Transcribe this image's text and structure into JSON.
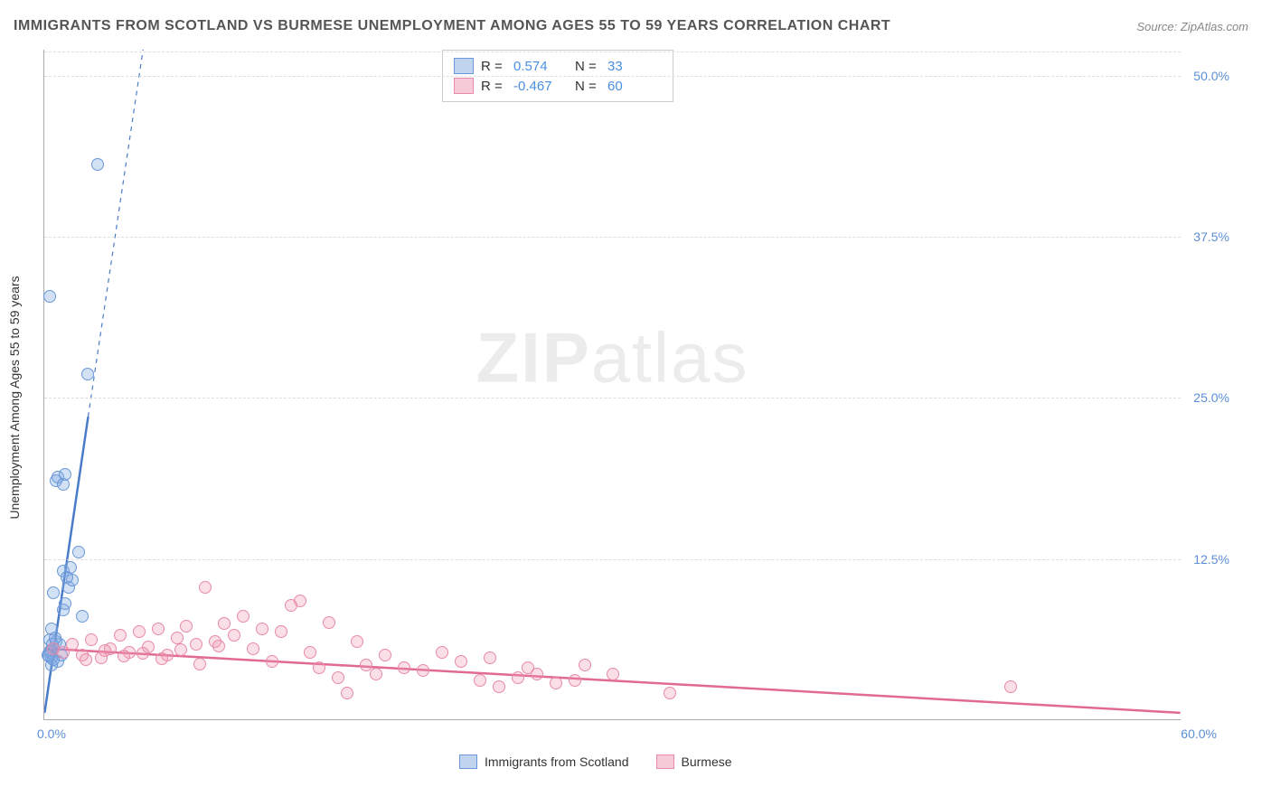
{
  "title": "IMMIGRANTS FROM SCOTLAND VS BURMESE UNEMPLOYMENT AMONG AGES 55 TO 59 YEARS CORRELATION CHART",
  "source": "Source: ZipAtlas.com",
  "ylabel": "Unemployment Among Ages 55 to 59 years",
  "watermark_a": "ZIP",
  "watermark_b": "atlas",
  "chart": {
    "type": "scatter",
    "xlim": [
      0,
      60
    ],
    "ylim": [
      0,
      52
    ],
    "yticks": [
      12.5,
      25.0,
      37.5,
      50.0
    ],
    "ytick_labels": [
      "12.5%",
      "25.0%",
      "37.5%",
      "50.0%"
    ],
    "x_zero_label": "0.0%",
    "x_max_label": "60.0%",
    "background_color": "#ffffff",
    "grid_color": "#dddddd",
    "marker_radius": 7,
    "marker_opacity": 0.35,
    "series": [
      {
        "name": "Immigrants from Scotland",
        "color_fill": "#a4c2e8",
        "color_stroke": "#6a98d8",
        "R": "0.574",
        "N": "33",
        "regression": {
          "x1": 0,
          "y1": 0.5,
          "x2": 2.3,
          "y2": 23.5,
          "x2_dash": 5.2,
          "y2_dash": 52,
          "stroke_width": 2.5
        },
        "points": [
          [
            0.2,
            5.0
          ],
          [
            0.3,
            5.2
          ],
          [
            0.4,
            4.8
          ],
          [
            0.5,
            5.5
          ],
          [
            0.6,
            6.0
          ],
          [
            0.3,
            6.2
          ],
          [
            0.7,
            4.5
          ],
          [
            0.8,
            5.8
          ],
          [
            0.4,
            7.0
          ],
          [
            0.9,
            5.0
          ],
          [
            1.0,
            8.5
          ],
          [
            1.1,
            9.0
          ],
          [
            0.5,
            9.8
          ],
          [
            1.3,
            10.2
          ],
          [
            1.5,
            10.8
          ],
          [
            1.0,
            11.5
          ],
          [
            1.2,
            11.0
          ],
          [
            1.4,
            11.8
          ],
          [
            1.8,
            13.0
          ],
          [
            2.0,
            8.0
          ],
          [
            0.6,
            18.5
          ],
          [
            0.7,
            18.8
          ],
          [
            1.0,
            18.2
          ],
          [
            1.1,
            19.0
          ],
          [
            2.3,
            26.8
          ],
          [
            0.3,
            32.8
          ],
          [
            2.8,
            43.0
          ],
          [
            0.4,
            4.2
          ],
          [
            0.5,
            4.6
          ],
          [
            0.35,
            5.3
          ],
          [
            0.45,
            5.8
          ],
          [
            0.55,
            6.3
          ],
          [
            0.25,
            4.9
          ]
        ]
      },
      {
        "name": "Burmese",
        "color_fill": "#f5c0d0",
        "color_stroke": "#e88aa8",
        "R": "-0.467",
        "N": "60",
        "regression": {
          "x1": 0,
          "y1": 5.5,
          "x2": 60,
          "y2": 0.5,
          "stroke_width": 2.5
        },
        "points": [
          [
            0.5,
            5.5
          ],
          [
            1.0,
            5.2
          ],
          [
            1.5,
            5.8
          ],
          [
            2.0,
            5.0
          ],
          [
            2.5,
            6.2
          ],
          [
            3.0,
            4.8
          ],
          [
            3.5,
            5.5
          ],
          [
            4.0,
            6.5
          ],
          [
            4.5,
            5.2
          ],
          [
            5.0,
            6.8
          ],
          [
            5.5,
            5.6
          ],
          [
            6.0,
            7.0
          ],
          [
            6.5,
            5.0
          ],
          [
            7.0,
            6.3
          ],
          [
            7.5,
            7.2
          ],
          [
            8.0,
            5.8
          ],
          [
            8.5,
            10.2
          ],
          [
            9.0,
            6.0
          ],
          [
            9.5,
            7.4
          ],
          [
            10.0,
            6.5
          ],
          [
            10.5,
            8.0
          ],
          [
            11.0,
            5.5
          ],
          [
            11.5,
            7.0
          ],
          [
            12.0,
            4.5
          ],
          [
            12.5,
            6.8
          ],
          [
            13.0,
            8.8
          ],
          [
            13.5,
            9.2
          ],
          [
            14.0,
            5.2
          ],
          [
            14.5,
            4.0
          ],
          [
            15.0,
            7.5
          ],
          [
            15.5,
            3.2
          ],
          [
            16.0,
            2.0
          ],
          [
            16.5,
            6.0
          ],
          [
            17.0,
            4.2
          ],
          [
            17.5,
            3.5
          ],
          [
            18.0,
            5.0
          ],
          [
            19.0,
            4.0
          ],
          [
            20.0,
            3.8
          ],
          [
            21.0,
            5.2
          ],
          [
            22.0,
            4.5
          ],
          [
            23.0,
            3.0
          ],
          [
            23.5,
            4.8
          ],
          [
            24.0,
            2.5
          ],
          [
            25.0,
            3.2
          ],
          [
            25.5,
            4.0
          ],
          [
            26.0,
            3.5
          ],
          [
            27.0,
            2.8
          ],
          [
            28.0,
            3.0
          ],
          [
            28.5,
            4.2
          ],
          [
            30.0,
            3.5
          ],
          [
            33.0,
            2.0
          ],
          [
            51.0,
            2.5
          ],
          [
            2.2,
            4.6
          ],
          [
            3.2,
            5.3
          ],
          [
            4.2,
            4.9
          ],
          [
            5.2,
            5.1
          ],
          [
            6.2,
            4.7
          ],
          [
            7.2,
            5.4
          ],
          [
            8.2,
            4.3
          ],
          [
            9.2,
            5.7
          ]
        ]
      }
    ]
  },
  "legend_top": [
    {
      "sw": "a",
      "R_label": "R =",
      "R": "0.574",
      "N_label": "N =",
      "N": "33"
    },
    {
      "sw": "b",
      "R_label": "R =",
      "R": "-0.467",
      "N_label": "N =",
      "N": "60"
    }
  ],
  "legend_bottom": [
    {
      "sw": "a",
      "label": "Immigrants from Scotland"
    },
    {
      "sw": "b",
      "label": "Burmese"
    }
  ]
}
